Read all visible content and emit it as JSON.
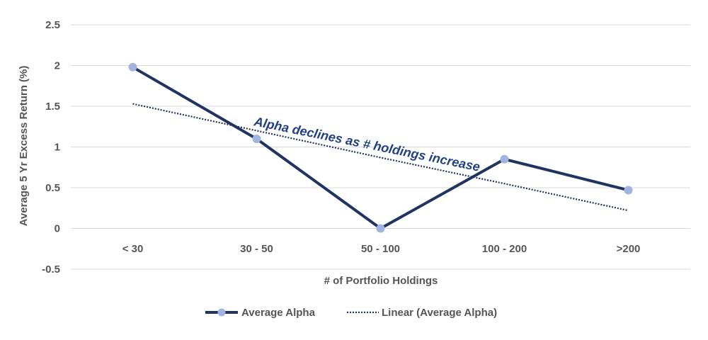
{
  "chart_data": {
    "type": "line",
    "title": "",
    "xlabel": "# of Portfolio Holdings",
    "ylabel": "Average 5 Yr Excess Return (%)",
    "categories": [
      "< 30",
      "30 - 50",
      "50 - 100",
      "100 - 200",
      ">200"
    ],
    "ylim": [
      -0.5,
      2.5
    ],
    "yticks": [
      "2.5",
      "2",
      "1.5",
      "1",
      "0.5",
      "0",
      "-0.5"
    ],
    "grid": true,
    "legend_position": "bottom",
    "series": [
      {
        "name": "Average Alpha",
        "values": [
          1.98,
          1.1,
          0.0,
          0.85,
          0.47
        ],
        "color": "#1f3461",
        "marker_color": "#a3b3e0"
      },
      {
        "name": "Linear (Average Alpha)",
        "values": [
          1.53,
          1.2,
          0.87,
          0.55,
          0.22
        ],
        "color": "#1f3461",
        "style": "dotted"
      }
    ],
    "annotation": {
      "text": "Alpha declines as # holdings increase",
      "color": "#1f3f8a"
    }
  }
}
